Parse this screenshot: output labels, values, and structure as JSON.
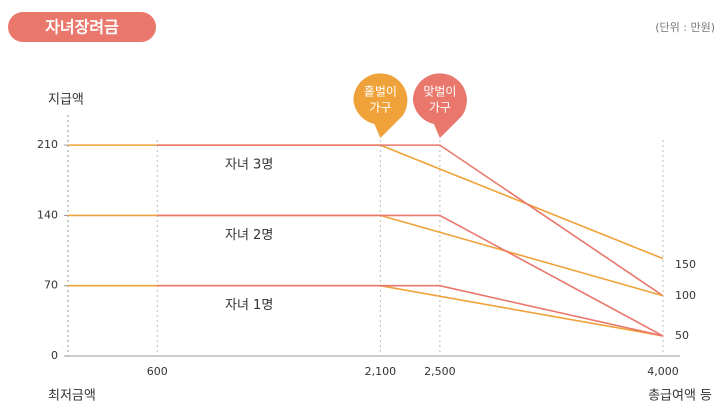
{
  "chart_data": {
    "type": "line",
    "title": "자녀장려금",
    "unit_note": "(단위 : 만원)",
    "y_label": "지급액",
    "x_label_left": "최저금액",
    "x_label_right": "총급여액 등",
    "xlim": [
      0,
      4000
    ],
    "xticks": [
      600,
      {
        "value": 2100,
        "label": "2,100"
      },
      {
        "value": 2500,
        "label": "2,500"
      },
      {
        "value": 4000,
        "label": "4,000"
      }
    ],
    "ylim": [
      0,
      240
    ],
    "yticks": [
      0,
      70,
      140,
      210
    ],
    "callouts": [
      {
        "lines": [
          "홑벌이",
          "가구"
        ],
        "color": "#f0a23a"
      },
      {
        "lines": [
          "맞벌이",
          "가구"
        ],
        "color": "#e9776c"
      }
    ],
    "groups": [
      {
        "label": "자녀 3명",
        "lines": [
          {
            "color": "#f0a23a",
            "x": [
              0,
              2100,
              4000
            ],
            "values": [
              210,
              210,
              97
            ]
          },
          {
            "color": "#e9776c",
            "x": [
              600,
              2500,
              4000
            ],
            "values": [
              210,
              210,
              60
            ]
          }
        ]
      },
      {
        "label": "자녀 2명",
        "lines": [
          {
            "color": "#f0a23a",
            "x": [
              0,
              2100,
              4000
            ],
            "values": [
              140,
              140,
              60
            ]
          },
          {
            "color": "#e9776c",
            "x": [
              600,
              2500,
              4000
            ],
            "values": [
              140,
              140,
              20
            ]
          }
        ]
      },
      {
        "label": "자녀 1명",
        "lines": [
          {
            "color": "#f0a23a",
            "x": [
              0,
              2100,
              4000
            ],
            "values": [
              70,
              70,
              20
            ]
          },
          {
            "color": "#e9776c",
            "x": [
              600,
              2500,
              4000
            ],
            "values": [
              70,
              70,
              20
            ]
          }
        ]
      }
    ],
    "end_labels": [
      150,
      100,
      50
    ]
  }
}
